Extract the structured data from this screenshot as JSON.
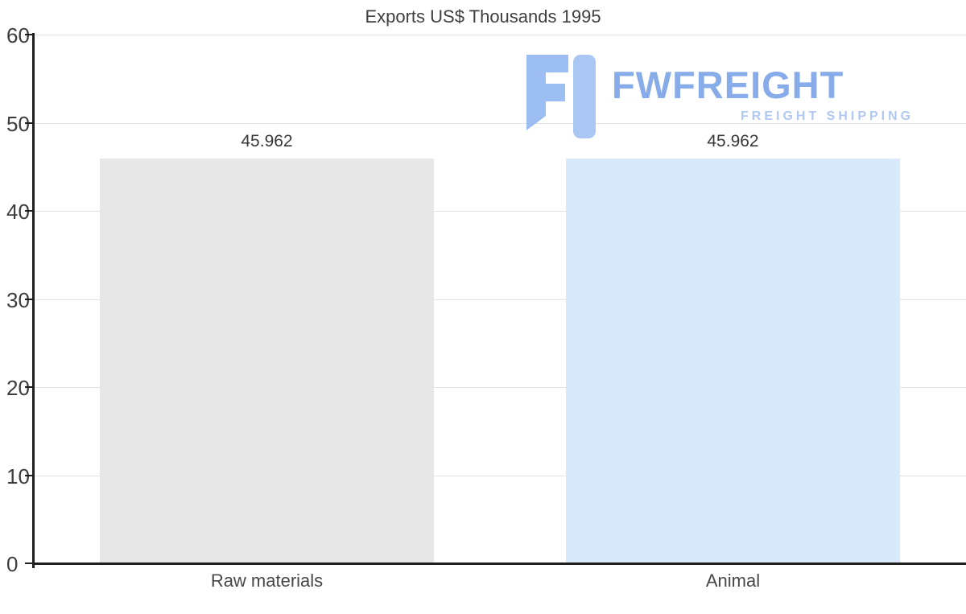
{
  "chart_data": {
    "type": "bar",
    "title": "Exports US$ Thousands 1995",
    "categories": [
      "Raw materials",
      "Animal"
    ],
    "values": [
      45.962,
      45.962
    ],
    "value_labels": [
      "45.962",
      "45.962"
    ],
    "bar_colors": [
      "#e7e7e7",
      "#d8e9fb"
    ],
    "xlabel": "",
    "ylabel": "",
    "ylim": [
      0,
      60
    ],
    "yticks": [
      0,
      10,
      20,
      30,
      40,
      50,
      60
    ],
    "grid": "horizontal",
    "legend": "none",
    "axis_color": "#1f1f1f",
    "gridline_color": "#e3e3e3"
  },
  "watermark": {
    "brand": "FWFREIGHT",
    "tagline": "FREIGHT SHIPPING",
    "brand_color": "#87ace9",
    "tagline_color": "#b1c8f1",
    "logo_color_primary": "#9cbef2",
    "logo_color_secondary": "#aac7f4"
  }
}
